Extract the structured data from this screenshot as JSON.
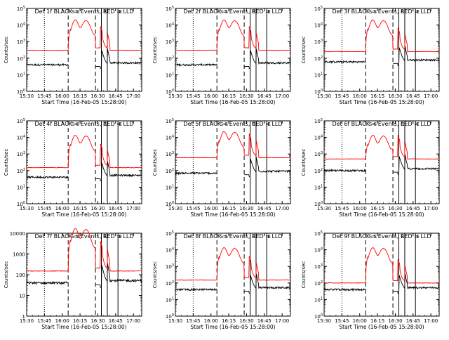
{
  "chart_data": [
    {
      "type": "line",
      "title": "Det 1f BLACK = Events, RED = LLD",
      "xlabel": "Start Time (16-Feb-05 15:28:00)",
      "ylabel": "Counts/sec",
      "ylog": true,
      "yrange": [
        1,
        100000
      ],
      "ytick_labels": [
        "10^0",
        "10^1",
        "10^2",
        "10^3",
        "10^4",
        "10^5"
      ],
      "xtick_labels": [
        "15:30",
        "15:45",
        "16:00",
        "16:15",
        "16:30",
        "16:45",
        "17:00"
      ],
      "xtick_minutes": [
        120,
        135,
        150,
        165,
        180,
        195,
        210
      ],
      "xrange_minutes": [
        120,
        217
      ],
      "marker_labels": [
        "S",
        "S",
        "E",
        "E"
      ],
      "vlines": [
        {
          "t": 135,
          "style": "dotted"
        },
        {
          "t": 155,
          "style": "dashed"
        },
        {
          "t": 178,
          "style": "dashed"
        },
        {
          "t": 183,
          "style": "solid"
        },
        {
          "t": 188,
          "style": "solid"
        },
        {
          "t": 197,
          "style": "solid"
        }
      ],
      "red_baseline": 300,
      "black_baseline": 40,
      "red_peak": 18000
    },
    {
      "type": "line",
      "title": "Det 2f BLACK = Events, RED = LLD",
      "xlabel": "Start Time (16-Feb-05 15:28:00)",
      "ylabel": "Counts/sec",
      "ylog": true,
      "yrange": [
        1,
        100000
      ],
      "ytick_labels": [
        "10^0",
        "10^1",
        "10^2",
        "10^3",
        "10^4",
        "10^5"
      ],
      "xtick_labels": [
        "15:30",
        "15:45",
        "16:00",
        "16:15",
        "16:30",
        "16:45",
        "17:00"
      ],
      "xtick_minutes": [
        120,
        135,
        150,
        165,
        180,
        195,
        210
      ],
      "xrange_minutes": [
        120,
        217
      ],
      "marker_labels": [
        "S",
        "S",
        "E",
        "E"
      ],
      "vlines": [
        {
          "t": 135,
          "style": "dotted"
        },
        {
          "t": 155,
          "style": "dashed"
        },
        {
          "t": 178,
          "style": "dashed"
        },
        {
          "t": 183,
          "style": "solid"
        },
        {
          "t": 188,
          "style": "solid"
        },
        {
          "t": 197,
          "style": "solid"
        }
      ],
      "red_baseline": 300,
      "black_baseline": 40,
      "red_peak": 18000
    },
    {
      "type": "line",
      "title": "Det 3f BLACK = Events, RED = LLD",
      "xlabel": "Start Time (16-Feb-05 15:28:00)",
      "ylabel": "Counts/sec",
      "ylog": true,
      "yrange": [
        1,
        100000
      ],
      "ytick_labels": [
        "10^0",
        "10^1",
        "10^2",
        "10^3",
        "10^4",
        "10^5"
      ],
      "xtick_labels": [
        "15:30",
        "15:45",
        "16:00",
        "16:15",
        "16:30",
        "16:45",
        "17:00"
      ],
      "xtick_minutes": [
        120,
        135,
        150,
        165,
        180,
        195,
        210
      ],
      "xrange_minutes": [
        120,
        217
      ],
      "marker_labels": [
        "S",
        "S",
        "E",
        "E"
      ],
      "vlines": [
        {
          "t": 135,
          "style": "dotted"
        },
        {
          "t": 155,
          "style": "dashed"
        },
        {
          "t": 178,
          "style": "dashed"
        },
        {
          "t": 183,
          "style": "solid"
        },
        {
          "t": 188,
          "style": "solid"
        },
        {
          "t": 197,
          "style": "solid"
        }
      ],
      "red_baseline": 250,
      "black_baseline": 60,
      "red_peak": 18000
    },
    {
      "type": "line",
      "title": "Det 4f BLACK = Events, RED = LLD",
      "xlabel": "Start Time (16-Feb-05 15:28:00)",
      "ylabel": "Counts/sec",
      "ylog": true,
      "yrange": [
        1,
        100000
      ],
      "ytick_labels": [
        "10^0",
        "10^1",
        "10^2",
        "10^3",
        "10^4",
        "10^5"
      ],
      "xtick_labels": [
        "15:30",
        "15:45",
        "16:00",
        "16:15",
        "16:30",
        "16:45",
        "17:00"
      ],
      "xtick_minutes": [
        120,
        135,
        150,
        165,
        180,
        195,
        210
      ],
      "xrange_minutes": [
        120,
        217
      ],
      "marker_labels": [
        "S",
        "S",
        "E",
        "E"
      ],
      "vlines": [
        {
          "t": 135,
          "style": "dotted"
        },
        {
          "t": 155,
          "style": "dashed"
        },
        {
          "t": 178,
          "style": "dashed"
        },
        {
          "t": 183,
          "style": "solid"
        },
        {
          "t": 188,
          "style": "solid"
        },
        {
          "t": 197,
          "style": "solid"
        }
      ],
      "red_baseline": 150,
      "black_baseline": 40,
      "red_peak": 12000
    },
    {
      "type": "line",
      "title": "Det 5f BLACK = Events, RED = LLD",
      "xlabel": "Start Time (16-Feb-05 15:28:00)",
      "ylabel": "Counts/sec",
      "ylog": true,
      "yrange": [
        1,
        100000
      ],
      "ytick_labels": [
        "10^0",
        "10^1",
        "10^2",
        "10^3",
        "10^4",
        "10^5"
      ],
      "xtick_labels": [
        "15:30",
        "15:45",
        "16:00",
        "16:15",
        "16:30",
        "16:45",
        "17:00"
      ],
      "xtick_minutes": [
        120,
        135,
        150,
        165,
        180,
        195,
        210
      ],
      "xrange_minutes": [
        120,
        217
      ],
      "marker_labels": [
        "S",
        "S",
        "E",
        "E"
      ],
      "vlines": [
        {
          "t": 135,
          "style": "dotted"
        },
        {
          "t": 155,
          "style": "dashed"
        },
        {
          "t": 178,
          "style": "dashed"
        },
        {
          "t": 183,
          "style": "solid"
        },
        {
          "t": 188,
          "style": "solid"
        },
        {
          "t": 197,
          "style": "solid"
        }
      ],
      "red_baseline": 600,
      "black_baseline": 70,
      "red_peak": 20000
    },
    {
      "type": "line",
      "title": "Det 6f BLACK = Events, RED = LLD",
      "xlabel": "Start Time (16-Feb-05 15:28:00)",
      "ylabel": "Counts/sec",
      "ylog": true,
      "yrange": [
        1,
        100000
      ],
      "ytick_labels": [
        "10^0",
        "10^1",
        "10^2",
        "10^3",
        "10^4",
        "10^5"
      ],
      "xtick_labels": [
        "15:30",
        "15:45",
        "16:00",
        "16:15",
        "16:30",
        "16:45",
        "17:00"
      ],
      "xtick_minutes": [
        120,
        135,
        150,
        165,
        180,
        195,
        210
      ],
      "xrange_minutes": [
        120,
        217
      ],
      "marker_labels": [
        "S",
        "S",
        "E",
        "E"
      ],
      "vlines": [
        {
          "t": 135,
          "style": "dotted"
        },
        {
          "t": 155,
          "style": "dashed"
        },
        {
          "t": 178,
          "style": "dashed"
        },
        {
          "t": 183,
          "style": "solid"
        },
        {
          "t": 188,
          "style": "solid"
        },
        {
          "t": 197,
          "style": "solid"
        }
      ],
      "red_baseline": 500,
      "black_baseline": 100,
      "red_peak": 12000
    },
    {
      "type": "line",
      "title": "Det 7f BLACK = Events, RED = LLD",
      "xlabel": "Start Time (16-Feb-05 15:28:00)",
      "ylabel": "Counts/sec",
      "ylog": true,
      "yrange": [
        1,
        10000
      ],
      "ytick_labels": [
        "1",
        "10",
        "100",
        "1000",
        "10000"
      ],
      "xtick_labels": [
        "15:30",
        "15:45",
        "16:00",
        "16:15",
        "16:30",
        "16:45",
        "17:00"
      ],
      "xtick_minutes": [
        120,
        135,
        150,
        165,
        180,
        195,
        210
      ],
      "xrange_minutes": [
        120,
        217
      ],
      "marker_labels": [
        "S",
        "S",
        "E",
        "E"
      ],
      "vlines": [
        {
          "t": 135,
          "style": "dotted"
        },
        {
          "t": 155,
          "style": "dashed"
        },
        {
          "t": 178,
          "style": "dashed"
        },
        {
          "t": 183,
          "style": "solid"
        },
        {
          "t": 188,
          "style": "solid"
        },
        {
          "t": 197,
          "style": "solid"
        }
      ],
      "red_baseline": 150,
      "black_baseline": 40,
      "red_peak": 15000
    },
    {
      "type": "line",
      "title": "Det 8f BLACK = Events, RED = LLD",
      "xlabel": "Start Time (16-Feb-05 15:28:00)",
      "ylabel": "Counts/sec",
      "ylog": true,
      "yrange": [
        1,
        100000
      ],
      "ytick_labels": [
        "10^0",
        "10^1",
        "10^2",
        "10^3",
        "10^4",
        "10^5"
      ],
      "xtick_labels": [
        "15:30",
        "15:45",
        "16:00",
        "16:15",
        "16:30",
        "16:45",
        "17:00"
      ],
      "xtick_minutes": [
        120,
        135,
        150,
        165,
        180,
        195,
        210
      ],
      "xrange_minutes": [
        120,
        217
      ],
      "marker_labels": [
        "S",
        "S",
        "E",
        "E"
      ],
      "vlines": [
        {
          "t": 135,
          "style": "dotted"
        },
        {
          "t": 155,
          "style": "dashed"
        },
        {
          "t": 178,
          "style": "dashed"
        },
        {
          "t": 183,
          "style": "solid"
        },
        {
          "t": 188,
          "style": "solid"
        },
        {
          "t": 197,
          "style": "solid"
        }
      ],
      "red_baseline": 150,
      "black_baseline": 40,
      "red_peak": 12000
    },
    {
      "type": "line",
      "title": "Det 9f BLACK = Events, RED = LLD",
      "xlabel": "Start Time (16-Feb-05 15:28:00)",
      "ylabel": "Counts/sec",
      "ylog": true,
      "yrange": [
        1,
        100000
      ],
      "ytick_labels": [
        "10^0",
        "10^1",
        "10^2",
        "10^3",
        "10^4",
        "10^5"
      ],
      "xtick_labels": [
        "15:30",
        "15:45",
        "16:00",
        "16:15",
        "16:30",
        "16:45",
        "17:00"
      ],
      "xtick_minutes": [
        120,
        135,
        150,
        165,
        180,
        195,
        210
      ],
      "xrange_minutes": [
        120,
        217
      ],
      "marker_labels": [
        "S",
        "S",
        "E",
        "E"
      ],
      "vlines": [
        {
          "t": 135,
          "style": "dotted"
        },
        {
          "t": 155,
          "style": "dashed"
        },
        {
          "t": 178,
          "style": "dashed"
        },
        {
          "t": 183,
          "style": "solid"
        },
        {
          "t": 188,
          "style": "solid"
        },
        {
          "t": 197,
          "style": "solid"
        }
      ],
      "red_baseline": 100,
      "black_baseline": 40,
      "red_peak": 12000
    }
  ],
  "colors": {
    "events": "#000000",
    "lld": "#ff0000",
    "axes": "#000000",
    "background": "#ffffff"
  }
}
